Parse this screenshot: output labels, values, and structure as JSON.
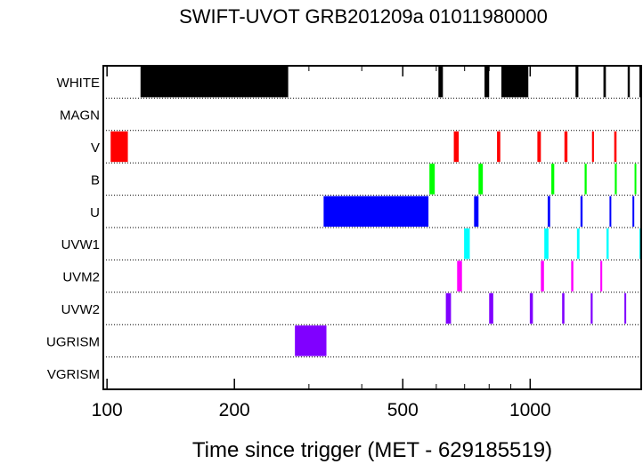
{
  "chart_data": {
    "type": "timeline",
    "title": "SWIFT-UVOT GRB201209a 01011980000",
    "xlabel": "Time since trigger (MET - 629185519)",
    "x_scale": "log",
    "xlim": [
      98,
      1830
    ],
    "x_ticks": [
      {
        "value": 100,
        "label": "100"
      },
      {
        "value": 200,
        "label": "200"
      },
      {
        "value": 500,
        "label": "500"
      },
      {
        "value": 1000,
        "label": "1000"
      }
    ],
    "x_minor_ticks": [
      300,
      400,
      600,
      700,
      800,
      900
    ],
    "grid": "dotted row separators",
    "filters": [
      {
        "name": "WHITE",
        "color": "#000000",
        "intervals": [
          [
            120,
            268
          ],
          [
            607,
            622
          ],
          [
            780,
            800
          ],
          [
            855,
            990
          ],
          [
            1280,
            1300
          ],
          [
            1490,
            1510
          ],
          [
            1700,
            1720
          ],
          [
            1815,
            1830
          ]
        ]
      },
      {
        "name": "MAGN",
        "color": "#000000",
        "intervals": []
      },
      {
        "name": "V",
        "color": "#ff0000",
        "intervals": [
          [
            102,
            112
          ],
          [
            660,
            678
          ],
          [
            835,
            850
          ],
          [
            1040,
            1060
          ],
          [
            1205,
            1225
          ],
          [
            1400,
            1415
          ],
          [
            1580,
            1600
          ]
        ]
      },
      {
        "name": "B",
        "color": "#00ff00",
        "intervals": [
          [
            578,
            595
          ],
          [
            755,
            773
          ],
          [
            1122,
            1140
          ],
          [
            1345,
            1360
          ],
          [
            1585,
            1602
          ],
          [
            1765,
            1780
          ]
        ]
      },
      {
        "name": "U",
        "color": "#0000ff",
        "intervals": [
          [
            325,
            575
          ],
          [
            737,
            755
          ],
          [
            1100,
            1115
          ],
          [
            1315,
            1330
          ],
          [
            1540,
            1555
          ],
          [
            1745,
            1760
          ]
        ]
      },
      {
        "name": "UVW1",
        "color": "#00ffff",
        "intervals": [
          [
            698,
            720
          ],
          [
            1080,
            1105
          ],
          [
            1290,
            1308
          ],
          [
            1515,
            1533
          ],
          [
            1830,
            1830
          ]
        ]
      },
      {
        "name": "UVM2",
        "color": "#ff00ff",
        "intervals": [
          [
            672,
            690
          ],
          [
            1060,
            1078
          ],
          [
            1250,
            1265
          ],
          [
            1465,
            1480
          ]
        ]
      },
      {
        "name": "UVW2",
        "color": "#8000ff",
        "intervals": [
          [
            632,
            650
          ],
          [
            800,
            818
          ],
          [
            998,
            1015
          ],
          [
            1190,
            1205
          ],
          [
            1390,
            1405
          ],
          [
            1670,
            1685
          ]
        ]
      },
      {
        "name": "UGRISM",
        "color": "#8000ff",
        "intervals": [
          [
            278,
            330
          ]
        ]
      },
      {
        "name": "VGRISM",
        "color": "#000000",
        "intervals": []
      }
    ]
  }
}
